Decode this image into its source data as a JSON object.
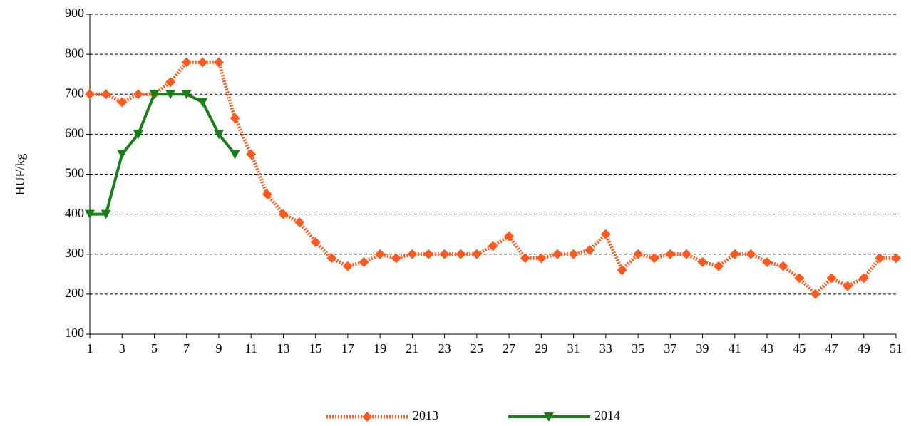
{
  "chart_data": {
    "type": "line",
    "y_label": "HUF/kg",
    "x": [
      1,
      2,
      3,
      4,
      5,
      6,
      7,
      8,
      9,
      10,
      11,
      12,
      13,
      14,
      15,
      16,
      17,
      18,
      19,
      20,
      21,
      22,
      23,
      24,
      25,
      26,
      27,
      28,
      29,
      30,
      31,
      32,
      33,
      34,
      35,
      36,
      37,
      38,
      39,
      40,
      41,
      42,
      43,
      44,
      45,
      46,
      47,
      48,
      49,
      50,
      51
    ],
    "series": [
      {
        "name": "2013",
        "color": "#ff5a1f",
        "style": "dotted",
        "marker": "diamond",
        "values": [
          700,
          700,
          680,
          700,
          700,
          730,
          780,
          780,
          780,
          640,
          550,
          450,
          400,
          380,
          330,
          290,
          270,
          280,
          300,
          290,
          300,
          300,
          300,
          300,
          300,
          320,
          345,
          290,
          290,
          300,
          300,
          310,
          350,
          260,
          300,
          290,
          300,
          300,
          280,
          270,
          300,
          300,
          280,
          270,
          240,
          200,
          240,
          220,
          240,
          290,
          290
        ]
      },
      {
        "name": "2014",
        "color": "#1a7f1a",
        "style": "solid",
        "marker": "triangle-down",
        "values": [
          400,
          400,
          550,
          600,
          700,
          700,
          700,
          680,
          600,
          550,
          null,
          null,
          null,
          null,
          null,
          null,
          null,
          null,
          null,
          null,
          null,
          null,
          null,
          null,
          null,
          null,
          null,
          null,
          null,
          null,
          null,
          null,
          null,
          null,
          null,
          null,
          null,
          null,
          null,
          null,
          null,
          null,
          null,
          null,
          null,
          null,
          null,
          null,
          null,
          null,
          null
        ]
      }
    ],
    "xlim": [
      1,
      51
    ],
    "xticks": [
      1,
      3,
      5,
      7,
      9,
      11,
      13,
      15,
      17,
      19,
      21,
      23,
      25,
      27,
      29,
      31,
      33,
      35,
      37,
      39,
      41,
      43,
      45,
      47,
      49,
      51
    ],
    "ylim": [
      100,
      900
    ],
    "yticks": [
      100,
      200,
      300,
      400,
      500,
      600,
      700,
      800,
      900
    ],
    "grid": true,
    "legend": "bottom"
  }
}
